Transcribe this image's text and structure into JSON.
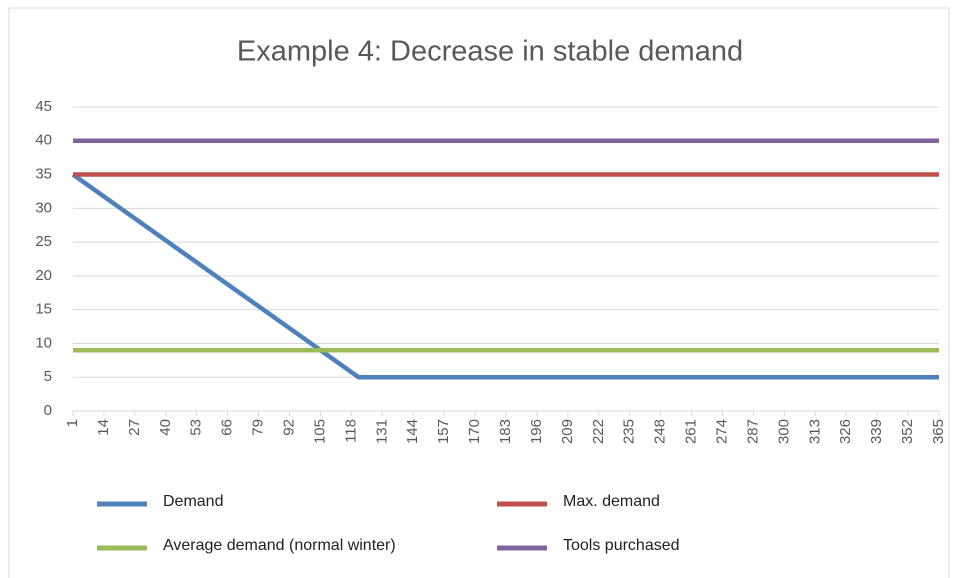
{
  "chart_data": {
    "type": "line",
    "title": "Example 4: Decrease in stable demand",
    "x": [
      1,
      121,
      365
    ],
    "series": [
      {
        "name": "Demand",
        "color": "#4f81bd",
        "values": [
          35,
          5,
          5
        ]
      },
      {
        "name": "Max. demand",
        "color": "#c0504d",
        "values": [
          35,
          35,
          35
        ]
      },
      {
        "name": "Average demand (normal winter)",
        "color": "#9bbb59",
        "values": [
          9,
          9,
          9
        ]
      },
      {
        "name": "Tools purchased",
        "color": "#8064a2",
        "values": [
          40,
          40,
          40
        ]
      }
    ],
    "xlim": [
      1,
      365
    ],
    "xticks": [
      1,
      14,
      27,
      40,
      53,
      66,
      79,
      92,
      105,
      118,
      131,
      144,
      157,
      170,
      183,
      196,
      209,
      222,
      235,
      248,
      261,
      274,
      287,
      300,
      313,
      326,
      339,
      352,
      365
    ],
    "ylim": [
      0,
      45
    ],
    "yticks": [
      0,
      5,
      10,
      15,
      20,
      25,
      30,
      35,
      40,
      45
    ],
    "grid": true,
    "legend": "bottom"
  }
}
